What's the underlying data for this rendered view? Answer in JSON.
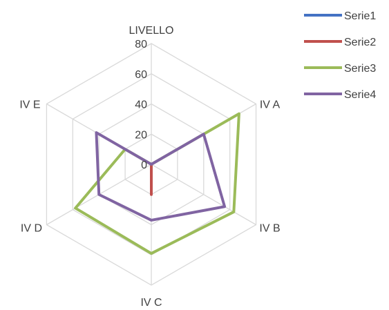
{
  "chart_data": {
    "type": "radar",
    "categories": [
      "LIVELLO",
      "IV A",
      "IV B",
      "IV C",
      "IV D",
      "IV E"
    ],
    "ticks": [
      0,
      20,
      40,
      60,
      80
    ],
    "rlim": [
      0,
      80
    ],
    "grid": true,
    "legend_position": "top-right",
    "series": [
      {
        "name": "Serie1",
        "color": "#4472C4",
        "values": [
          0,
          0,
          0,
          0,
          0,
          0
        ]
      },
      {
        "name": "Serie2",
        "color": "#C0504D",
        "values": [
          0,
          0,
          0,
          20,
          0,
          0
        ]
      },
      {
        "name": "Serie3",
        "color": "#9BBB59",
        "values": [
          0,
          67,
          63,
          59,
          58,
          20
        ]
      },
      {
        "name": "Serie4",
        "color": "#8064A2",
        "values": [
          0,
          40,
          56,
          37,
          40,
          42
        ]
      }
    ]
  }
}
